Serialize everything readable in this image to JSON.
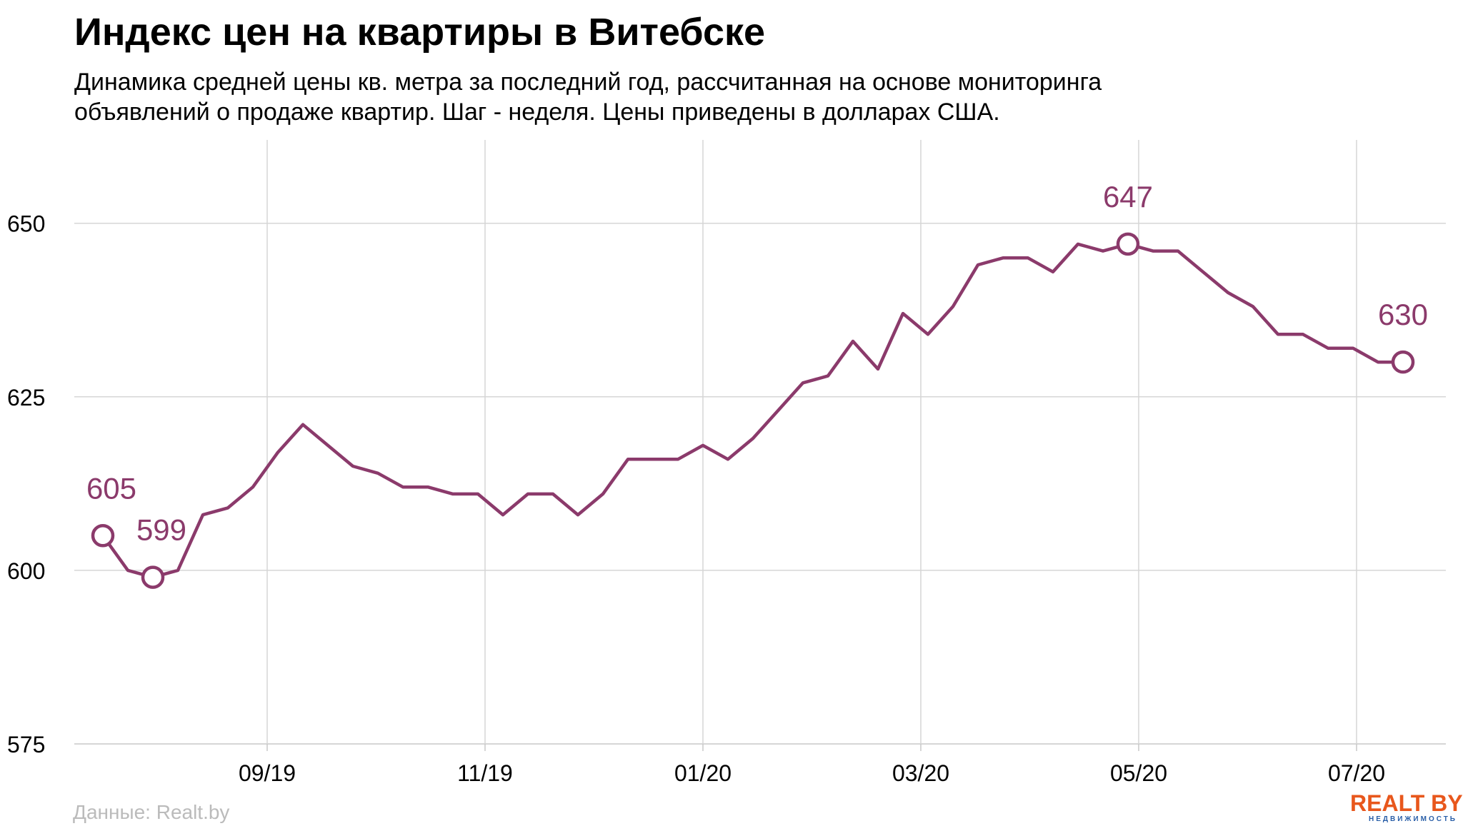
{
  "header": {
    "title": "Индекс цен на квартиры в Витебске",
    "subtitle_line1": "Динамика средней цены кв. метра за последний год, рассчитанная на основе мониторинга",
    "subtitle_line2": "объявлений о продаже квартир. Шаг - неделя. Цены приведены в долларах США."
  },
  "footer": {
    "source": "Данные: Realt.by",
    "logo_main": "REALT BY",
    "logo_sub": "НЕДВИЖИМОСТЬ"
  },
  "colors": {
    "line": "#8b3a6b",
    "grid": "#d6d6d6",
    "text": "#000000",
    "source": "#bbbbbb",
    "logo_orange": "#e8571c",
    "logo_blue": "#2a5fa8"
  },
  "chart_data": {
    "type": "line",
    "title": "Индекс цен на квартиры в Витебске",
    "ylim": [
      575,
      662
    ],
    "y_ticks": [
      575,
      600,
      625,
      650
    ],
    "x_ticks": [
      {
        "date": "2019-08-31",
        "label": "09/19"
      },
      {
        "date": "2019-10-31",
        "label": "11/19"
      },
      {
        "date": "2019-12-31",
        "label": "01/20"
      },
      {
        "date": "2020-03-01",
        "label": "03/20"
      },
      {
        "date": "2020-05-01",
        "label": "05/20"
      },
      {
        "date": "2020-07-01",
        "label": "07/20"
      }
    ],
    "x_range": [
      "2019-07-08",
      "2020-07-26"
    ],
    "grid": true,
    "series": [
      {
        "dates": [
          "2019-07-16",
          "2019-07-23",
          "2019-07-30",
          "2019-08-06",
          "2019-08-13",
          "2019-08-20",
          "2019-08-27",
          "2019-09-03",
          "2019-09-10",
          "2019-09-17",
          "2019-09-24",
          "2019-10-01",
          "2019-10-08",
          "2019-10-15",
          "2019-10-22",
          "2019-10-29",
          "2019-11-05",
          "2019-11-12",
          "2019-11-19",
          "2019-11-26",
          "2019-12-03",
          "2019-12-10",
          "2019-12-17",
          "2019-12-24",
          "2019-12-31",
          "2020-01-07",
          "2020-01-14",
          "2020-01-21",
          "2020-01-28",
          "2020-02-04",
          "2020-02-11",
          "2020-02-18",
          "2020-02-25",
          "2020-03-03",
          "2020-03-10",
          "2020-03-17",
          "2020-03-24",
          "2020-03-31",
          "2020-04-07",
          "2020-04-14",
          "2020-04-21",
          "2020-04-28",
          "2020-05-05",
          "2020-05-12",
          "2020-05-19",
          "2020-05-26",
          "2020-06-02",
          "2020-06-09",
          "2020-06-16",
          "2020-06-23",
          "2020-06-30",
          "2020-07-07",
          "2020-07-14"
        ],
        "values": [
          605,
          600,
          599,
          600,
          608,
          609,
          612,
          617,
          621,
          618,
          615,
          614,
          612,
          612,
          611,
          611,
          608,
          611,
          611,
          608,
          611,
          616,
          616,
          616,
          618,
          616,
          619,
          623,
          627,
          628,
          633,
          629,
          637,
          634,
          638,
          644,
          645,
          645,
          643,
          647,
          646,
          647,
          646,
          646,
          643,
          640,
          638,
          634,
          634,
          632,
          632,
          630,
          630
        ]
      }
    ],
    "annotations": [
      {
        "date": "2019-07-16",
        "value": 605,
        "label": "605"
      },
      {
        "date": "2019-07-30",
        "value": 599,
        "label": "599"
      },
      {
        "date": "2020-04-28",
        "value": 647,
        "label": "647"
      },
      {
        "date": "2020-07-14",
        "value": 630,
        "label": "630"
      }
    ]
  }
}
